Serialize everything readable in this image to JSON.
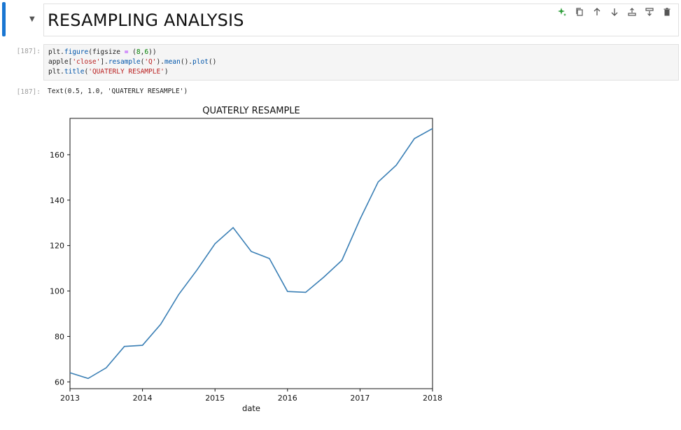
{
  "markdown_cell": {
    "heading": "RESAMPLING ANALYSIS"
  },
  "toolbar": {
    "buttons": [
      {
        "name": "sparkle-ai-button",
        "icon": "sparkle-icon",
        "color": "#2e9e3a"
      },
      {
        "name": "duplicate-cell-button",
        "icon": "copy-icon"
      },
      {
        "name": "move-up-button",
        "icon": "arrow-up-icon"
      },
      {
        "name": "move-down-button",
        "icon": "arrow-down-icon"
      },
      {
        "name": "insert-above-button",
        "icon": "insert-above-icon"
      },
      {
        "name": "insert-below-button",
        "icon": "insert-below-icon"
      },
      {
        "name": "delete-cell-button",
        "icon": "trash-icon"
      }
    ]
  },
  "code_cell": {
    "prompt": "[187]:",
    "line1": {
      "a": "plt.",
      "b": "figure",
      "c": "(figsize ",
      "d": "=",
      "e": " (",
      "f": "8",
      "g": ",",
      "h": "6",
      "i": "))"
    },
    "line2": {
      "a": "apple[",
      "b": "'close'",
      "c": "].",
      "d": "resample",
      "e": "(",
      "f": "'Q'",
      "g": ").",
      "h": "mean",
      "i": "().",
      "j": "plot",
      "k": "()"
    },
    "line3": {
      "a": "plt.",
      "b": "title",
      "c": "(",
      "d": "'QUATERLY RESAMPLE'",
      "e": ")"
    }
  },
  "output_cell": {
    "prompt": "[187]:",
    "text": "Text(0.5, 1.0, 'QUATERLY RESAMPLE')"
  },
  "chart_data": {
    "type": "line",
    "title": "QUATERLY RESAMPLE",
    "xlabel": "date",
    "ylabel": "",
    "xlim": [
      2013.0,
      2018.0
    ],
    "ylim": [
      57,
      176
    ],
    "x_ticks": [
      2013,
      2014,
      2015,
      2016,
      2017,
      2018
    ],
    "y_ticks": [
      60,
      80,
      100,
      120,
      140,
      160
    ],
    "grid": false,
    "color": "#3a7fb5",
    "x": [
      2013.0,
      2013.25,
      2013.5,
      2013.75,
      2014.0,
      2014.25,
      2014.5,
      2014.75,
      2015.0,
      2015.25,
      2015.5,
      2015.75,
      2016.0,
      2016.25,
      2016.5,
      2016.75,
      2017.0,
      2017.25,
      2017.5,
      2017.75,
      2018.0
    ],
    "values": [
      64.0,
      61.5,
      66.2,
      75.6,
      76.1,
      85.3,
      98.5,
      109.2,
      120.8,
      127.9,
      117.4,
      114.3,
      99.8,
      99.4,
      106.1,
      113.5,
      131.6,
      148.0,
      155.4,
      167.1,
      171.5
    ]
  }
}
